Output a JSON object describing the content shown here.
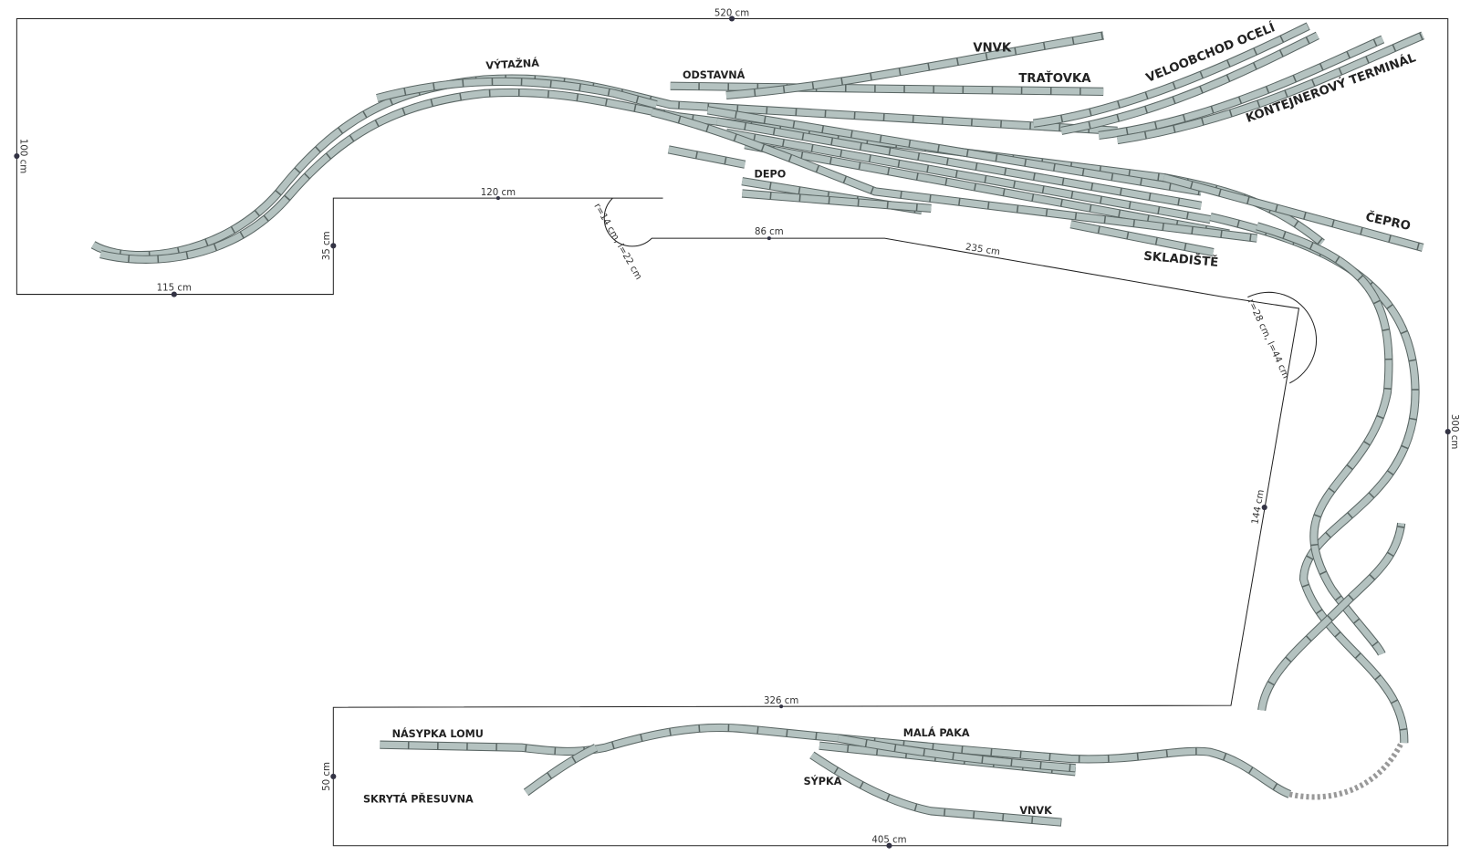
{
  "dimensions": [
    "520 cm",
    "100 cm",
    "35 cm",
    "115 cm",
    "120 cm",
    "r=14 cm, l=22 cm",
    "86 cm",
    "235 cm",
    "r=28 cm, l=44 cm",
    "300 cm",
    "144 cm",
    "326 cm",
    "50 cm",
    "405 cm"
  ],
  "labels": [
    "VÝTAŽNÁ",
    "ODSTAVNÁ",
    "VNVK",
    "TRAŤOVKA",
    "VELOOBCHOD OCELÍ",
    "KONTEJNEROVÝ TERMINÁL",
    "DEPO",
    "ČEPRO",
    "SKLADIŠTĚ",
    "NÁSYPKA LOMU",
    "MALÁ PAKA",
    "SÝPKA",
    "VNVK",
    "SKRYTÁ PŘESUVNA"
  ]
}
